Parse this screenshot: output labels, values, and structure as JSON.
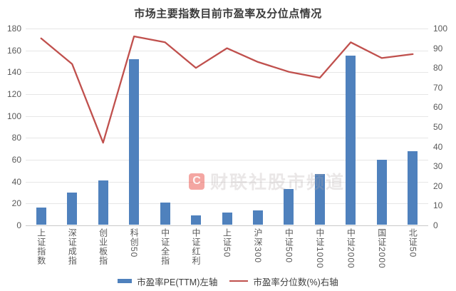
{
  "chart": {
    "title": "市场主要指数目前市盈率及分位点情况",
    "watermark": {
      "logo": "C",
      "text": "财联社股市频道"
    },
    "legend": [
      {
        "label": "市盈率PE(TTM)左轴",
        "type": "bar",
        "color": "#4F81BD"
      },
      {
        "label": "市盈率分位数(%)右轴",
        "type": "line",
        "color": "#C0504D"
      }
    ]
  },
  "chart_data": {
    "type": "bar",
    "title": "市场主要指数目前市盈率及分位点情况",
    "categories": [
      "上证指数",
      "深证成指",
      "创业板指",
      "科创50",
      "中证全指",
      "中证红利",
      "上证50",
      "沪深300",
      "中证500",
      "中证1000",
      "中证2000",
      "国证2000",
      "北证50"
    ],
    "series": [
      {
        "name": "市盈率PE(TTM)左轴",
        "type": "bar",
        "axis": "left",
        "color": "#4F81BD",
        "values": [
          16,
          30,
          41,
          152,
          21,
          9,
          12,
          14,
          33,
          47,
          155,
          60,
          68
        ]
      },
      {
        "name": "市盈率分位数(%)右轴",
        "type": "line",
        "axis": "right",
        "color": "#C0504D",
        "values": [
          95,
          82,
          42,
          96,
          93,
          80,
          90,
          83,
          78,
          75,
          93,
          85,
          87
        ]
      }
    ],
    "left_axis": {
      "min": 0,
      "max": 180,
      "step": 20
    },
    "right_axis": {
      "min": 0,
      "max": 100,
      "step": 10
    },
    "grid": "horizontal",
    "legend_position": "bottom"
  }
}
